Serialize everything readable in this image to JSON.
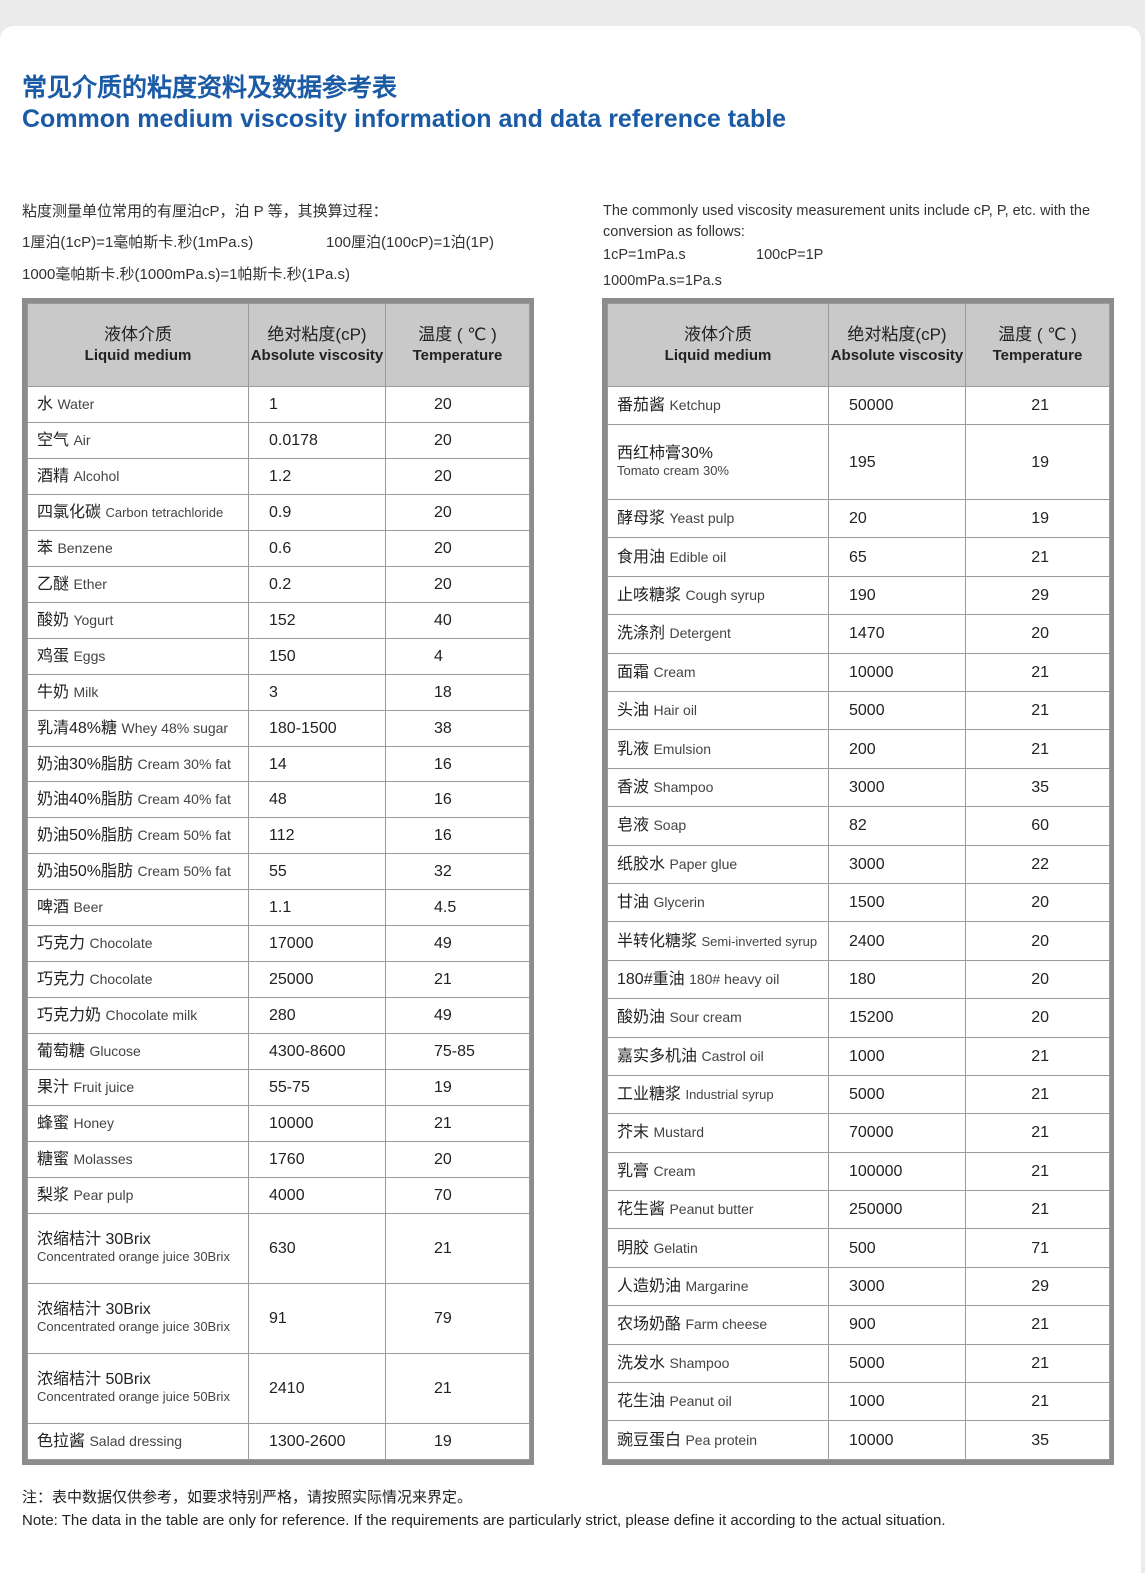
{
  "header": {
    "title_cn": "常见介质的粘度资料及数据参考表",
    "title_en": "Common medium viscosity information and data reference table"
  },
  "intro_left": {
    "line1": "粘度测量单位常用的有厘泊cP，泊 P 等，其换算过程：",
    "line2a": "1厘泊(1cP)=1毫帕斯卡.秒(1mPa.s)",
    "line2b": "100厘泊(100cP)=1泊(1P)",
    "line3": "1000毫帕斯卡.秒(1000mPa.s)=1帕斯卡.秒(1Pa.s)"
  },
  "intro_right": {
    "line1": "The commonly used viscosity measurement units include cP, P, etc. with the conversion as follows:",
    "line2a": "1cP=1mPa.s",
    "line2b": "100cP=1P",
    "line3": "1000mPa.s=1Pa.s"
  },
  "tables": [
    {
      "columns": [
        {
          "cn": "液体介质",
          "en": "Liquid medium"
        },
        {
          "cn": "绝对粘度(cP)",
          "en": "Absolute viscosity"
        },
        {
          "cn": "温度 ( ℃ )",
          "en": "Temperature"
        }
      ],
      "rows": [
        [
          "水",
          "Water",
          "1",
          "20"
        ],
        [
          "空气",
          "Air",
          "0.0178",
          "20"
        ],
        [
          "酒精",
          "Alcohol",
          "1.2",
          "20"
        ],
        [
          "四氯化碳",
          "Carbon tetrachloride",
          "0.9",
          "20"
        ],
        [
          "苯",
          "Benzene",
          "0.6",
          "20"
        ],
        [
          "乙醚",
          "Ether",
          "0.2",
          "20"
        ],
        [
          "酸奶",
          "Yogurt",
          "152",
          "40"
        ],
        [
          "鸡蛋",
          "Eggs",
          "150",
          "4"
        ],
        [
          "牛奶",
          "Milk",
          "3",
          "18"
        ],
        [
          "乳清48%糖",
          "Whey 48% sugar",
          "180-1500",
          "38"
        ],
        [
          "奶油30%脂肪",
          "Cream 30% fat",
          "14",
          "16"
        ],
        [
          "奶油40%脂肪",
          "Cream 40% fat",
          "48",
          "16"
        ],
        [
          "奶油50%脂肪",
          "Cream 50% fat",
          "112",
          "16"
        ],
        [
          "奶油50%脂肪",
          "Cream 50% fat",
          "55",
          "32"
        ],
        [
          "啤酒",
          "Beer",
          "1.1",
          "4.5"
        ],
        [
          "巧克力",
          "Chocolate",
          "17000",
          "49"
        ],
        [
          "巧克力",
          "Chocolate",
          "25000",
          "21"
        ],
        [
          "巧克力奶",
          "Chocolate milk",
          "280",
          "49"
        ],
        [
          "葡萄糖",
          "Glucose",
          "4300-8600",
          "75-85"
        ],
        [
          "果汁",
          "Fruit juice",
          "55-75",
          "19"
        ],
        [
          "蜂蜜",
          "Honey",
          "10000",
          "21"
        ],
        [
          "糖蜜",
          "Molasses",
          "1760",
          "20"
        ],
        [
          "梨浆",
          "Pear pulp",
          "4000",
          "70"
        ],
        [
          "浓缩桔汁 30Brix",
          "Concentrated orange juice 30Brix",
          "630",
          "21"
        ],
        [
          "浓缩桔汁 30Brix",
          "Concentrated orange juice 30Brix",
          "91",
          "79"
        ],
        [
          "浓缩桔汁 50Brix",
          "Concentrated orange juice 50Brix",
          "2410",
          "21"
        ],
        [
          "色拉酱",
          "Salad dressing",
          "1300-2600",
          "19"
        ]
      ]
    },
    {
      "columns": [
        {
          "cn": "液体介质",
          "en": "Liquid medium"
        },
        {
          "cn": "绝对粘度(cP)",
          "en": "Absolute viscosity"
        },
        {
          "cn": "温度 ( ℃ )",
          "en": "Temperature"
        }
      ],
      "rows": [
        [
          "番茄酱",
          "Ketchup",
          "50000",
          "21"
        ],
        [
          "西红柿膏30%",
          "Tomato cream 30%",
          "195",
          "19"
        ],
        [
          "酵母浆",
          "Yeast pulp",
          "20",
          "19"
        ],
        [
          "食用油",
          "Edible oil",
          "65",
          "21"
        ],
        [
          "止咳糖浆",
          "Cough syrup",
          "190",
          "29"
        ],
        [
          "洗涤剂",
          "Detergent",
          "1470",
          "20"
        ],
        [
          "面霜",
          "Cream",
          "10000",
          "21"
        ],
        [
          "头油",
          "Hair oil",
          "5000",
          "21"
        ],
        [
          "乳液",
          "Emulsion",
          "200",
          "21"
        ],
        [
          "香波",
          "Shampoo",
          "3000",
          "35"
        ],
        [
          "皂液",
          "Soap",
          "82",
          "60"
        ],
        [
          "纸胶水",
          "Paper glue",
          "3000",
          "22"
        ],
        [
          "甘油",
          "Glycerin",
          "1500",
          "20"
        ],
        [
          "半转化糖浆",
          "Semi-inverted syrup",
          "2400",
          "20"
        ],
        [
          "180#重油",
          "180# heavy oil",
          "180",
          "20"
        ],
        [
          "酸奶油",
          "Sour cream",
          "15200",
          "20"
        ],
        [
          "嘉实多机油",
          "Castrol oil",
          "1000",
          "21"
        ],
        [
          "工业糖浆",
          "Industrial syrup",
          "5000",
          "21"
        ],
        [
          "芥末",
          "Mustard",
          "70000",
          "21"
        ],
        [
          "乳膏",
          "Cream",
          "100000",
          "21"
        ],
        [
          "花生酱",
          "Peanut butter",
          "250000",
          "21"
        ],
        [
          "明胶",
          "Gelatin",
          "500",
          "71"
        ],
        [
          "人造奶油",
          "Margarine",
          "3000",
          "29"
        ],
        [
          "农场奶酪",
          "Farm cheese",
          "900",
          "21"
        ],
        [
          "洗发水",
          "Shampoo",
          "5000",
          "21"
        ],
        [
          "花生油",
          "Peanut oil",
          "1000",
          "21"
        ],
        [
          "豌豆蛋白",
          "Pea protein",
          "10000",
          "35"
        ]
      ]
    }
  ],
  "notes": {
    "cn": "注：表中数据仅供参考，如要求特别严格，请按照实际情况来界定。",
    "en": "Note: The data in the table are only for reference. If the requirements are particularly strict, please define it according to the actual situation."
  }
}
